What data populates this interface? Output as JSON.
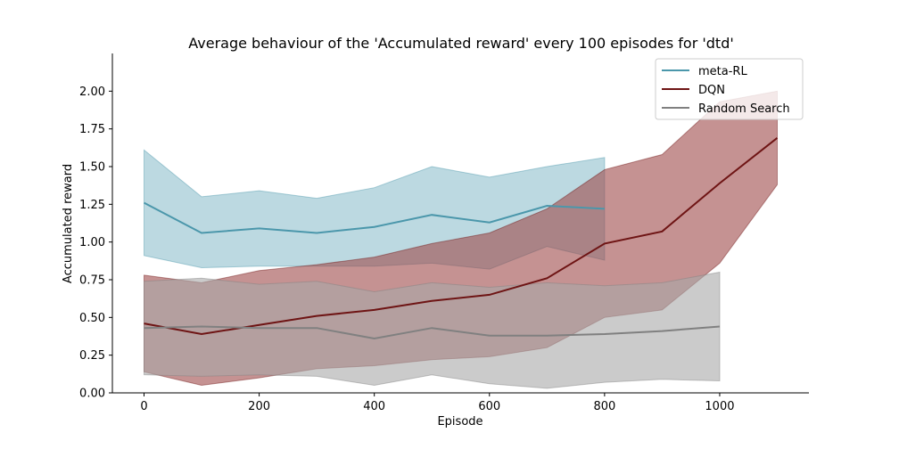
{
  "chart_data": {
    "type": "line",
    "title": "Average behaviour of the 'Accumulated reward' every 100 episodes for 'dtd'",
    "xlabel": "Episode",
    "ylabel": "Accumulated reward",
    "xlim": [
      -55,
      1155
    ],
    "ylim": [
      0,
      2.25
    ],
    "xticks": [
      0,
      200,
      400,
      600,
      800,
      1000
    ],
    "yticks": [
      0.0,
      0.25,
      0.5,
      0.75,
      1.0,
      1.25,
      1.5,
      1.75,
      2.0
    ],
    "xtick_labels": [
      "0",
      "200",
      "400",
      "600",
      "800",
      "1000"
    ],
    "ytick_labels": [
      "0.00",
      "0.25",
      "0.50",
      "0.75",
      "1.00",
      "1.25",
      "1.50",
      "1.75",
      "2.00"
    ],
    "grid": false,
    "legend_position": "top-right",
    "series": [
      {
        "name": "meta-RL",
        "color": "#4b97ab",
        "fill_color": "#8fbfcd",
        "x": [
          0,
          100,
          200,
          300,
          400,
          500,
          600,
          700,
          800
        ],
        "mean": [
          1.26,
          1.06,
          1.09,
          1.06,
          1.1,
          1.18,
          1.13,
          1.24,
          1.22
        ],
        "lower": [
          0.91,
          0.83,
          0.84,
          0.84,
          0.84,
          0.86,
          0.82,
          0.97,
          0.88
        ],
        "upper": [
          1.61,
          1.3,
          1.34,
          1.29,
          1.36,
          1.5,
          1.43,
          1.5,
          1.56
        ]
      },
      {
        "name": "DQN",
        "color": "#6e1414",
        "fill_color": "#9e4a4a",
        "x": [
          0,
          100,
          200,
          300,
          400,
          500,
          600,
          700,
          800,
          900,
          1000,
          1100
        ],
        "mean": [
          0.46,
          0.39,
          0.45,
          0.51,
          0.55,
          0.61,
          0.65,
          0.76,
          0.99,
          1.07,
          1.39,
          1.69
        ],
        "lower": [
          0.14,
          0.05,
          0.1,
          0.16,
          0.18,
          0.22,
          0.24,
          0.3,
          0.5,
          0.55,
          0.86,
          1.38
        ],
        "upper": [
          0.78,
          0.73,
          0.81,
          0.85,
          0.9,
          0.99,
          1.06,
          1.22,
          1.48,
          1.58,
          1.93,
          2.0
        ]
      },
      {
        "name": "Random Search",
        "color": "#808080",
        "fill_color": "#a9a9a9",
        "x": [
          0,
          100,
          200,
          300,
          400,
          500,
          600,
          700,
          800,
          900,
          1000
        ],
        "mean": [
          0.43,
          0.44,
          0.43,
          0.43,
          0.36,
          0.43,
          0.38,
          0.38,
          0.39,
          0.41,
          0.44
        ],
        "lower": [
          0.12,
          0.11,
          0.12,
          0.11,
          0.05,
          0.12,
          0.06,
          0.03,
          0.07,
          0.09,
          0.08
        ],
        "upper": [
          0.74,
          0.76,
          0.72,
          0.74,
          0.67,
          0.73,
          0.7,
          0.73,
          0.71,
          0.73,
          0.8
        ]
      }
    ]
  }
}
